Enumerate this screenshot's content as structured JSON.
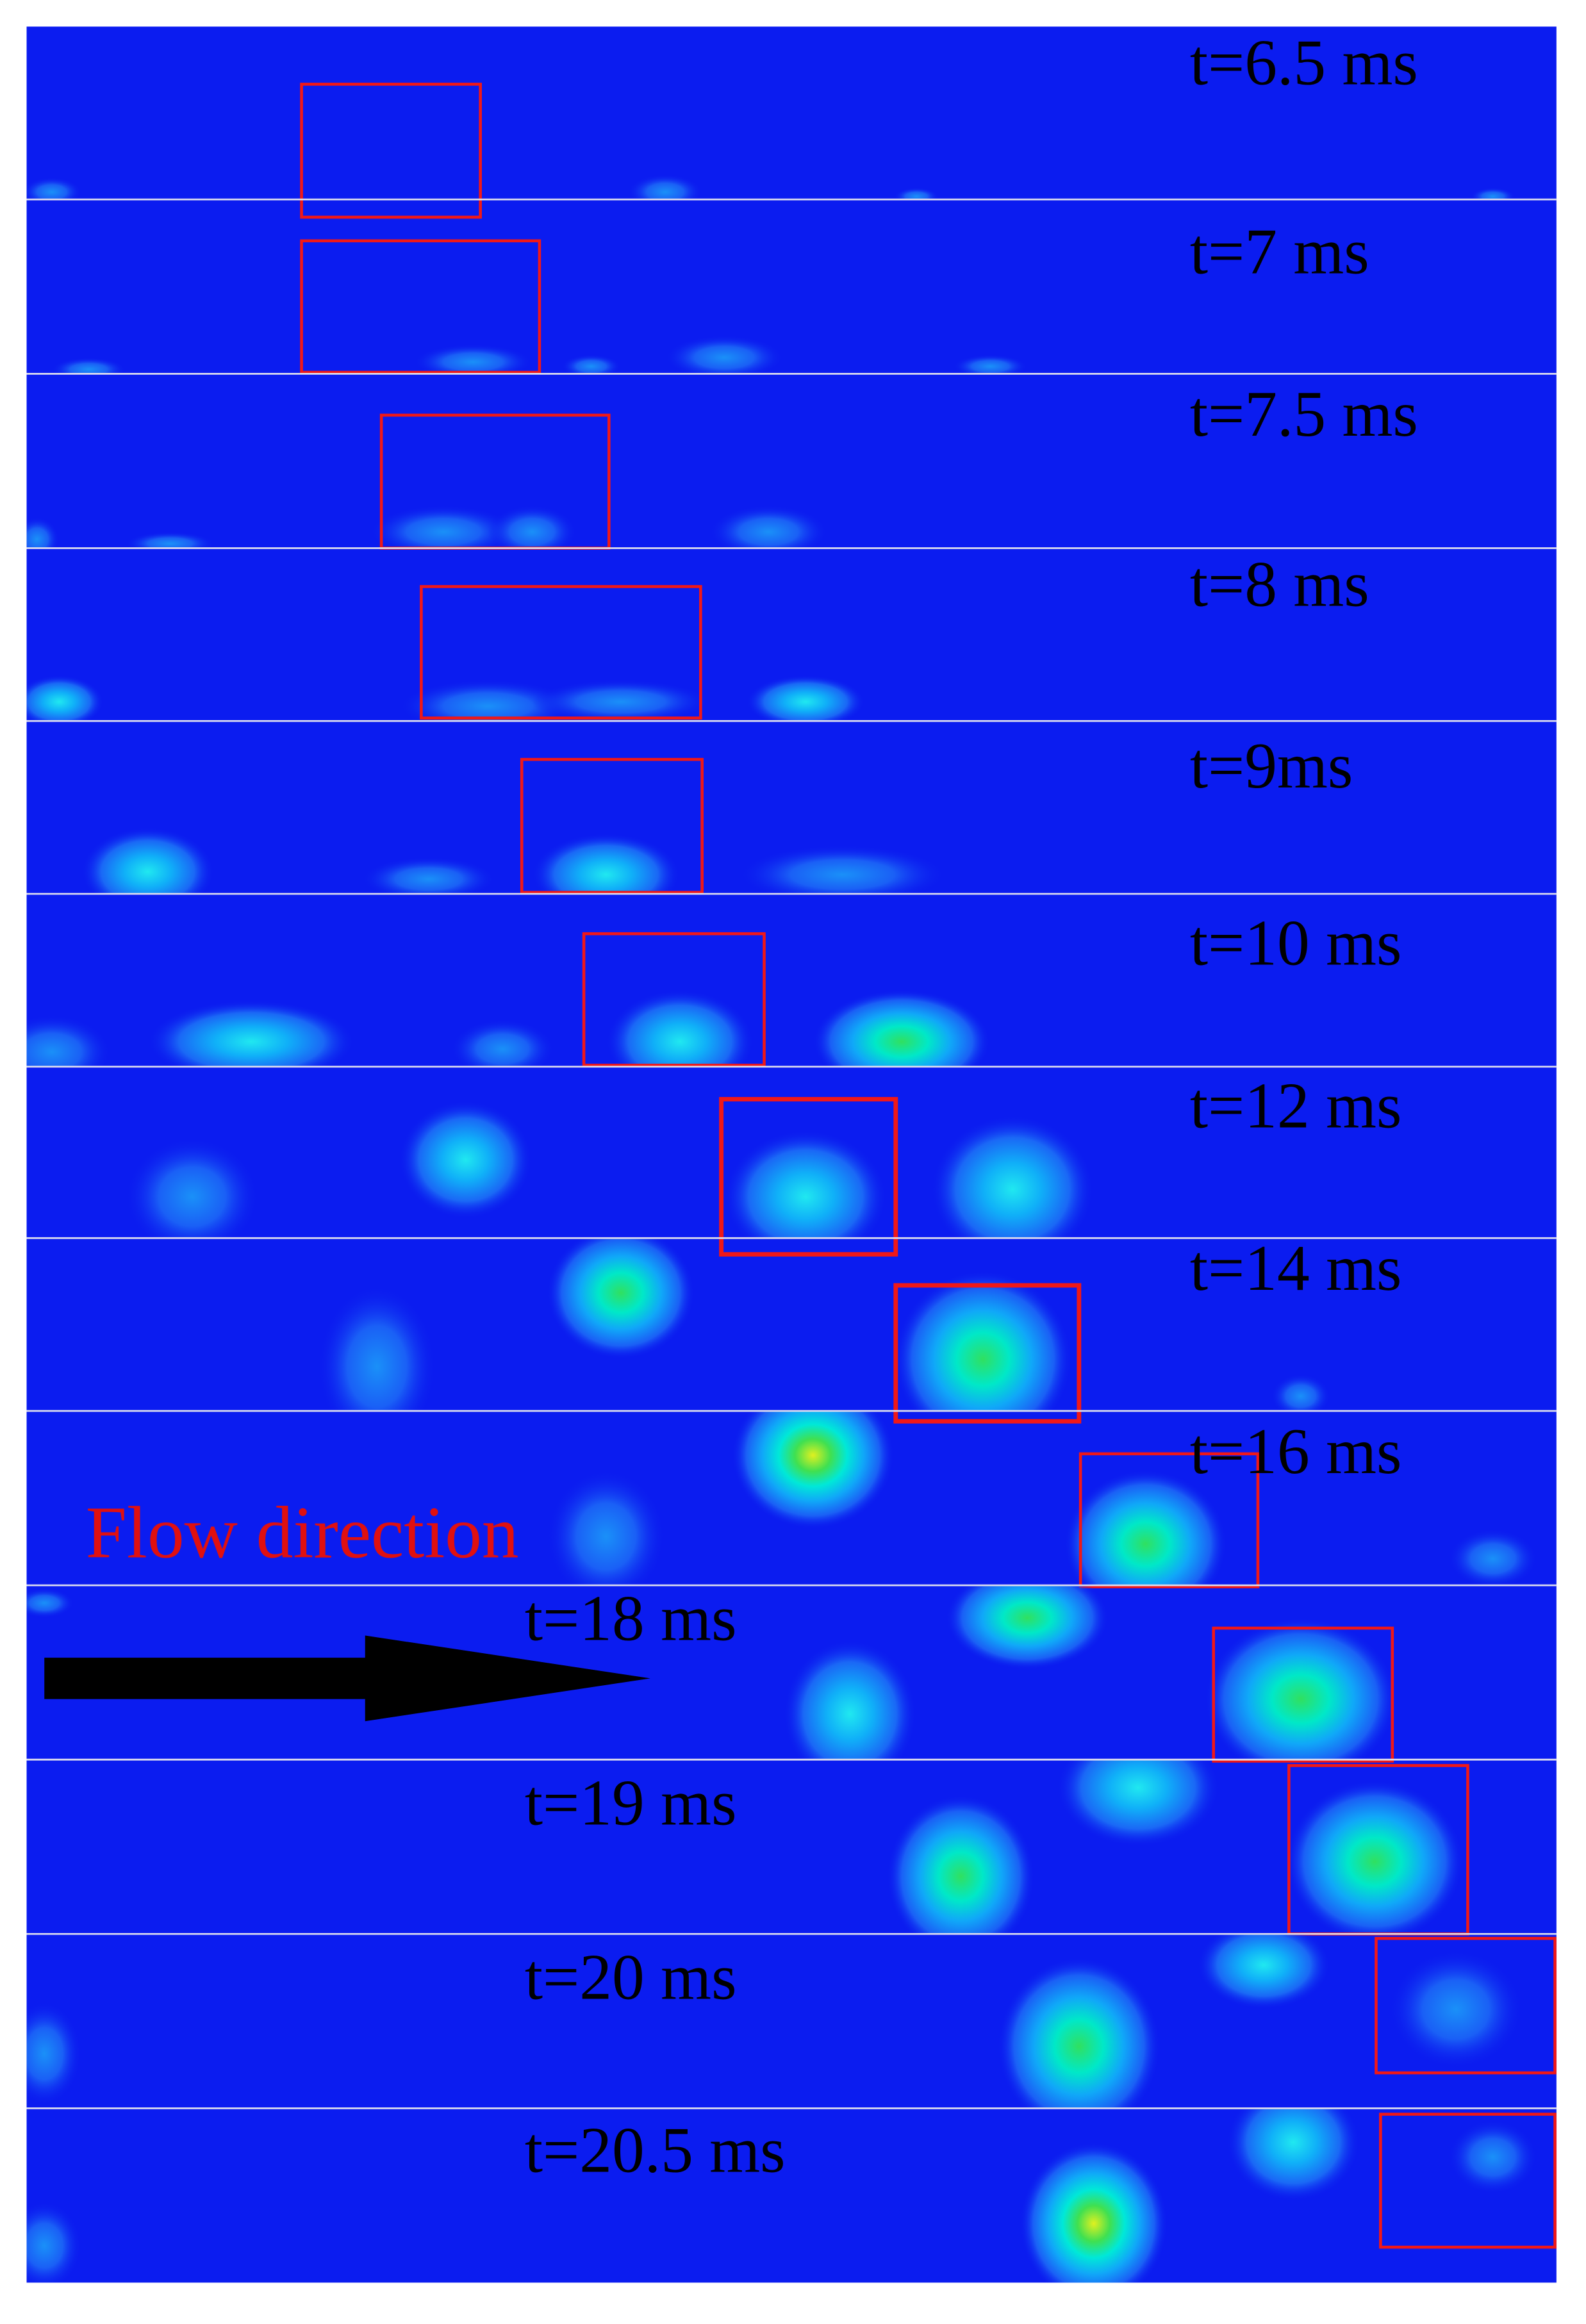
{
  "panels": [
    {
      "label": "t=6.5 ms"
    },
    {
      "label": "t=7 ms"
    },
    {
      "label": "t=7.5 ms"
    },
    {
      "label": "t=8 ms"
    },
    {
      "label": "t=9ms"
    },
    {
      "label": "t=10 ms"
    },
    {
      "label": "t=12 ms"
    },
    {
      "label": "t=14 ms"
    },
    {
      "label": "t=16 ms"
    },
    {
      "label": "t=18 ms"
    },
    {
      "label": "t=19 ms"
    },
    {
      "label": "t=20 ms"
    },
    {
      "label": "t=20.5 ms"
    }
  ],
  "annotation": "Flow direction"
}
